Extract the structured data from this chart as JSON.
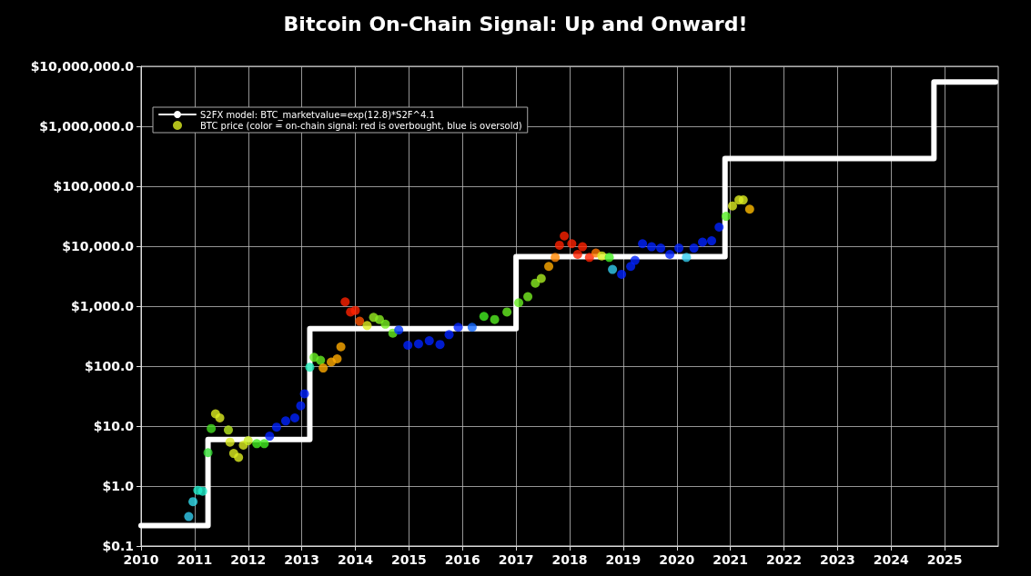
{
  "chart_data": {
    "type": "line",
    "title": "Bitcoin On-Chain Signal: Up and Onward!",
    "xlim": [
      2010,
      2026
    ],
    "xticks": [
      2010,
      2011,
      2012,
      2013,
      2014,
      2015,
      2016,
      2017,
      2018,
      2019,
      2020,
      2021,
      2022,
      2023,
      2024,
      2025
    ],
    "ylim": [
      0.1,
      10000000
    ],
    "log": "y",
    "yticks": [
      {
        "value": 0.1,
        "label": "$0.1"
      },
      {
        "value": 1,
        "label": "$1.0"
      },
      {
        "value": 10,
        "label": "$10.0"
      },
      {
        "value": 100,
        "label": "$100.0"
      },
      {
        "value": 1000,
        "label": "$1,000.0"
      },
      {
        "value": 10000,
        "label": "$10,000.0"
      },
      {
        "value": 100000,
        "label": "$100,000.0"
      },
      {
        "value": 1000000,
        "label": "$1,000,000.0"
      },
      {
        "value": 10000000,
        "label": "$10,000,000.0"
      }
    ],
    "grid": true,
    "legend": "top left",
    "series": [
      {
        "name": "S2FX model: BTC_marketvalue=exp(12.8)*S2F^4.1",
        "color": "#ffffff",
        "marker": "none",
        "line_style": "solid",
        "x": [
          2010,
          2011.25,
          2011.25,
          2013.15,
          2013.15,
          2017.0,
          2017.0,
          2020.9,
          2020.9,
          2024.8,
          2024.8,
          2025.95
        ],
        "values": [
          0.22,
          0.22,
          6,
          6,
          420,
          420,
          6700,
          6700,
          290000,
          290000,
          5500000,
          5500000
        ]
      },
      {
        "name": "BTC price (color = on-chain signal: red is overbought, blue is oversold)",
        "type": "scatter",
        "color": "#ddee22",
        "marker": "circle",
        "x": [
          2010.89,
          2010.97,
          2011.06,
          2011.15,
          2011.25,
          2011.31,
          2011.39,
          2011.47,
          2011.63,
          2011.66,
          2011.73,
          2011.82,
          2011.91,
          2012.0,
          2012.16,
          2012.3,
          2012.4,
          2012.53,
          2012.7,
          2012.87,
          2012.98,
          2013.05,
          2013.15,
          2013.23,
          2013.35,
          2013.4,
          2013.55,
          2013.66,
          2013.73,
          2013.81,
          2013.91,
          2014.0,
          2014.08,
          2014.22,
          2014.34,
          2014.45,
          2014.56,
          2014.7,
          2014.81,
          2014.98,
          2015.18,
          2015.38,
          2015.58,
          2015.75,
          2015.92,
          2016.18,
          2016.4,
          2016.6,
          2016.83,
          2017.05,
          2017.22,
          2017.36,
          2017.47,
          2017.61,
          2017.73,
          2017.81,
          2017.9,
          2018.04,
          2018.15,
          2018.24,
          2018.37,
          2018.49,
          2018.6,
          2018.74,
          2018.8,
          2018.97,
          2019.14,
          2019.22,
          2019.36,
          2019.53,
          2019.7,
          2019.87,
          2020.04,
          2020.18,
          2020.32,
          2020.48,
          2020.65,
          2020.79,
          2020.92,
          2021.04,
          2021.16,
          2021.24,
          2021.36
        ],
        "values": [
          0.31,
          0.55,
          0.85,
          0.82,
          3.6,
          9.1,
          16,
          13.7,
          8.6,
          5.4,
          3.5,
          3.0,
          4.8,
          5.7,
          5.1,
          5.1,
          6.8,
          9.6,
          12.2,
          13.7,
          21.8,
          34.6,
          96,
          140,
          125,
          93,
          117,
          132,
          210,
          1180,
          800,
          850,
          560,
          475,
          650,
          600,
          500,
          355,
          400,
          223,
          235,
          265,
          230,
          335,
          445,
          445,
          675,
          600,
          800,
          1140,
          1440,
          2420,
          2900,
          4600,
          6500,
          10400,
          14800,
          11000,
          7300,
          9800,
          6500,
          7700,
          6900,
          6500,
          4100,
          3400,
          4600,
          5800,
          11000,
          9800,
          9300,
          7300,
          9300,
          6500,
          9300,
          11700,
          12300,
          20800,
          31500,
          47000,
          59000,
          59000,
          41500
        ],
        "colors": [
          "#33ccee",
          "#33ddee",
          "#22eecc",
          "#22eecc",
          "#33dd33",
          "#44dd22",
          "#ddee22",
          "#ddee22",
          "#bbee22",
          "#ddee22",
          "#ddee22",
          "#ddee22",
          "#ddee22",
          "#ccee22",
          "#44ee22",
          "#44ee22",
          "#0022ff",
          "#0022ff",
          "#0022ff",
          "#0022ff",
          "#0022ff",
          "#0022ff",
          "#22eebb",
          "#66ee22",
          "#66ee22",
          "#ffaa00",
          "#ffaa00",
          "#ffaa00",
          "#ffaa00",
          "#ff2200",
          "#ff2200",
          "#ff2200",
          "#ff5500",
          "#ddee22",
          "#99ee22",
          "#88ee22",
          "#77ee22",
          "#66ee22",
          "#0033ff",
          "#0022ff",
          "#0022ff",
          "#0022ff",
          "#0022ff",
          "#0022ff",
          "#0022ff",
          "#1166ff",
          "#44ee22",
          "#55ee22",
          "#66ee22",
          "#66ee22",
          "#77ee22",
          "#88ee22",
          "#aaee22",
          "#ffaa00",
          "#ff8800",
          "#ff2200",
          "#ff2200",
          "#ff2200",
          "#ff2200",
          "#ff2200",
          "#ff2200",
          "#ff7700",
          "#ddee22",
          "#44ee22",
          "#33ccee",
          "#0022ff",
          "#0022ff",
          "#0022ff",
          "#0022ff",
          "#0022ff",
          "#0022ff",
          "#0022ff",
          "#0022ff",
          "#33ccee",
          "#0022ff",
          "#0022ff",
          "#0022ff",
          "#0022ff",
          "#55ee22",
          "#ddee22",
          "#ddee22",
          "#ddee22",
          "#ffbb00"
        ]
      }
    ]
  }
}
